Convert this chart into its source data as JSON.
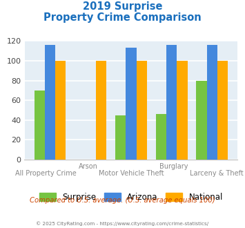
{
  "title_line1": "2019 Surprise",
  "title_line2": "Property Crime Comparison",
  "title_color": "#1a6fbd",
  "categories": [
    "All Property Crime",
    "Arson",
    "Motor Vehicle Theft",
    "Burglary",
    "Larceny & Theft"
  ],
  "tick_labels_row1": [
    "",
    "Arson",
    "",
    "Burglary",
    ""
  ],
  "tick_labels_row2": [
    "All Property Crime",
    "",
    "Motor Vehicle Theft",
    "",
    "Larceny & Theft"
  ],
  "surprise": [
    70,
    0,
    45,
    46,
    80
  ],
  "arizona": [
    116,
    0,
    113,
    116,
    116
  ],
  "national": [
    100,
    100,
    100,
    100,
    100
  ],
  "bar_colors": {
    "surprise": "#76c442",
    "arizona": "#4488dd",
    "national": "#ffaa00"
  },
  "ylim": [
    0,
    120
  ],
  "yticks": [
    0,
    20,
    40,
    60,
    80,
    100,
    120
  ],
  "background_color": "#e5eef5",
  "legend_labels": [
    "Surprise",
    "Arizona",
    "National"
  ],
  "note_text": "Compared to U.S. average. (U.S. average equals 100)",
  "note_color": "#cc4400",
  "copyright_text": "© 2025 CityRating.com - https://www.cityrating.com/crime-statistics/",
  "copyright_color": "#777777",
  "grid_color": "#ffffff",
  "bar_width": 0.26
}
